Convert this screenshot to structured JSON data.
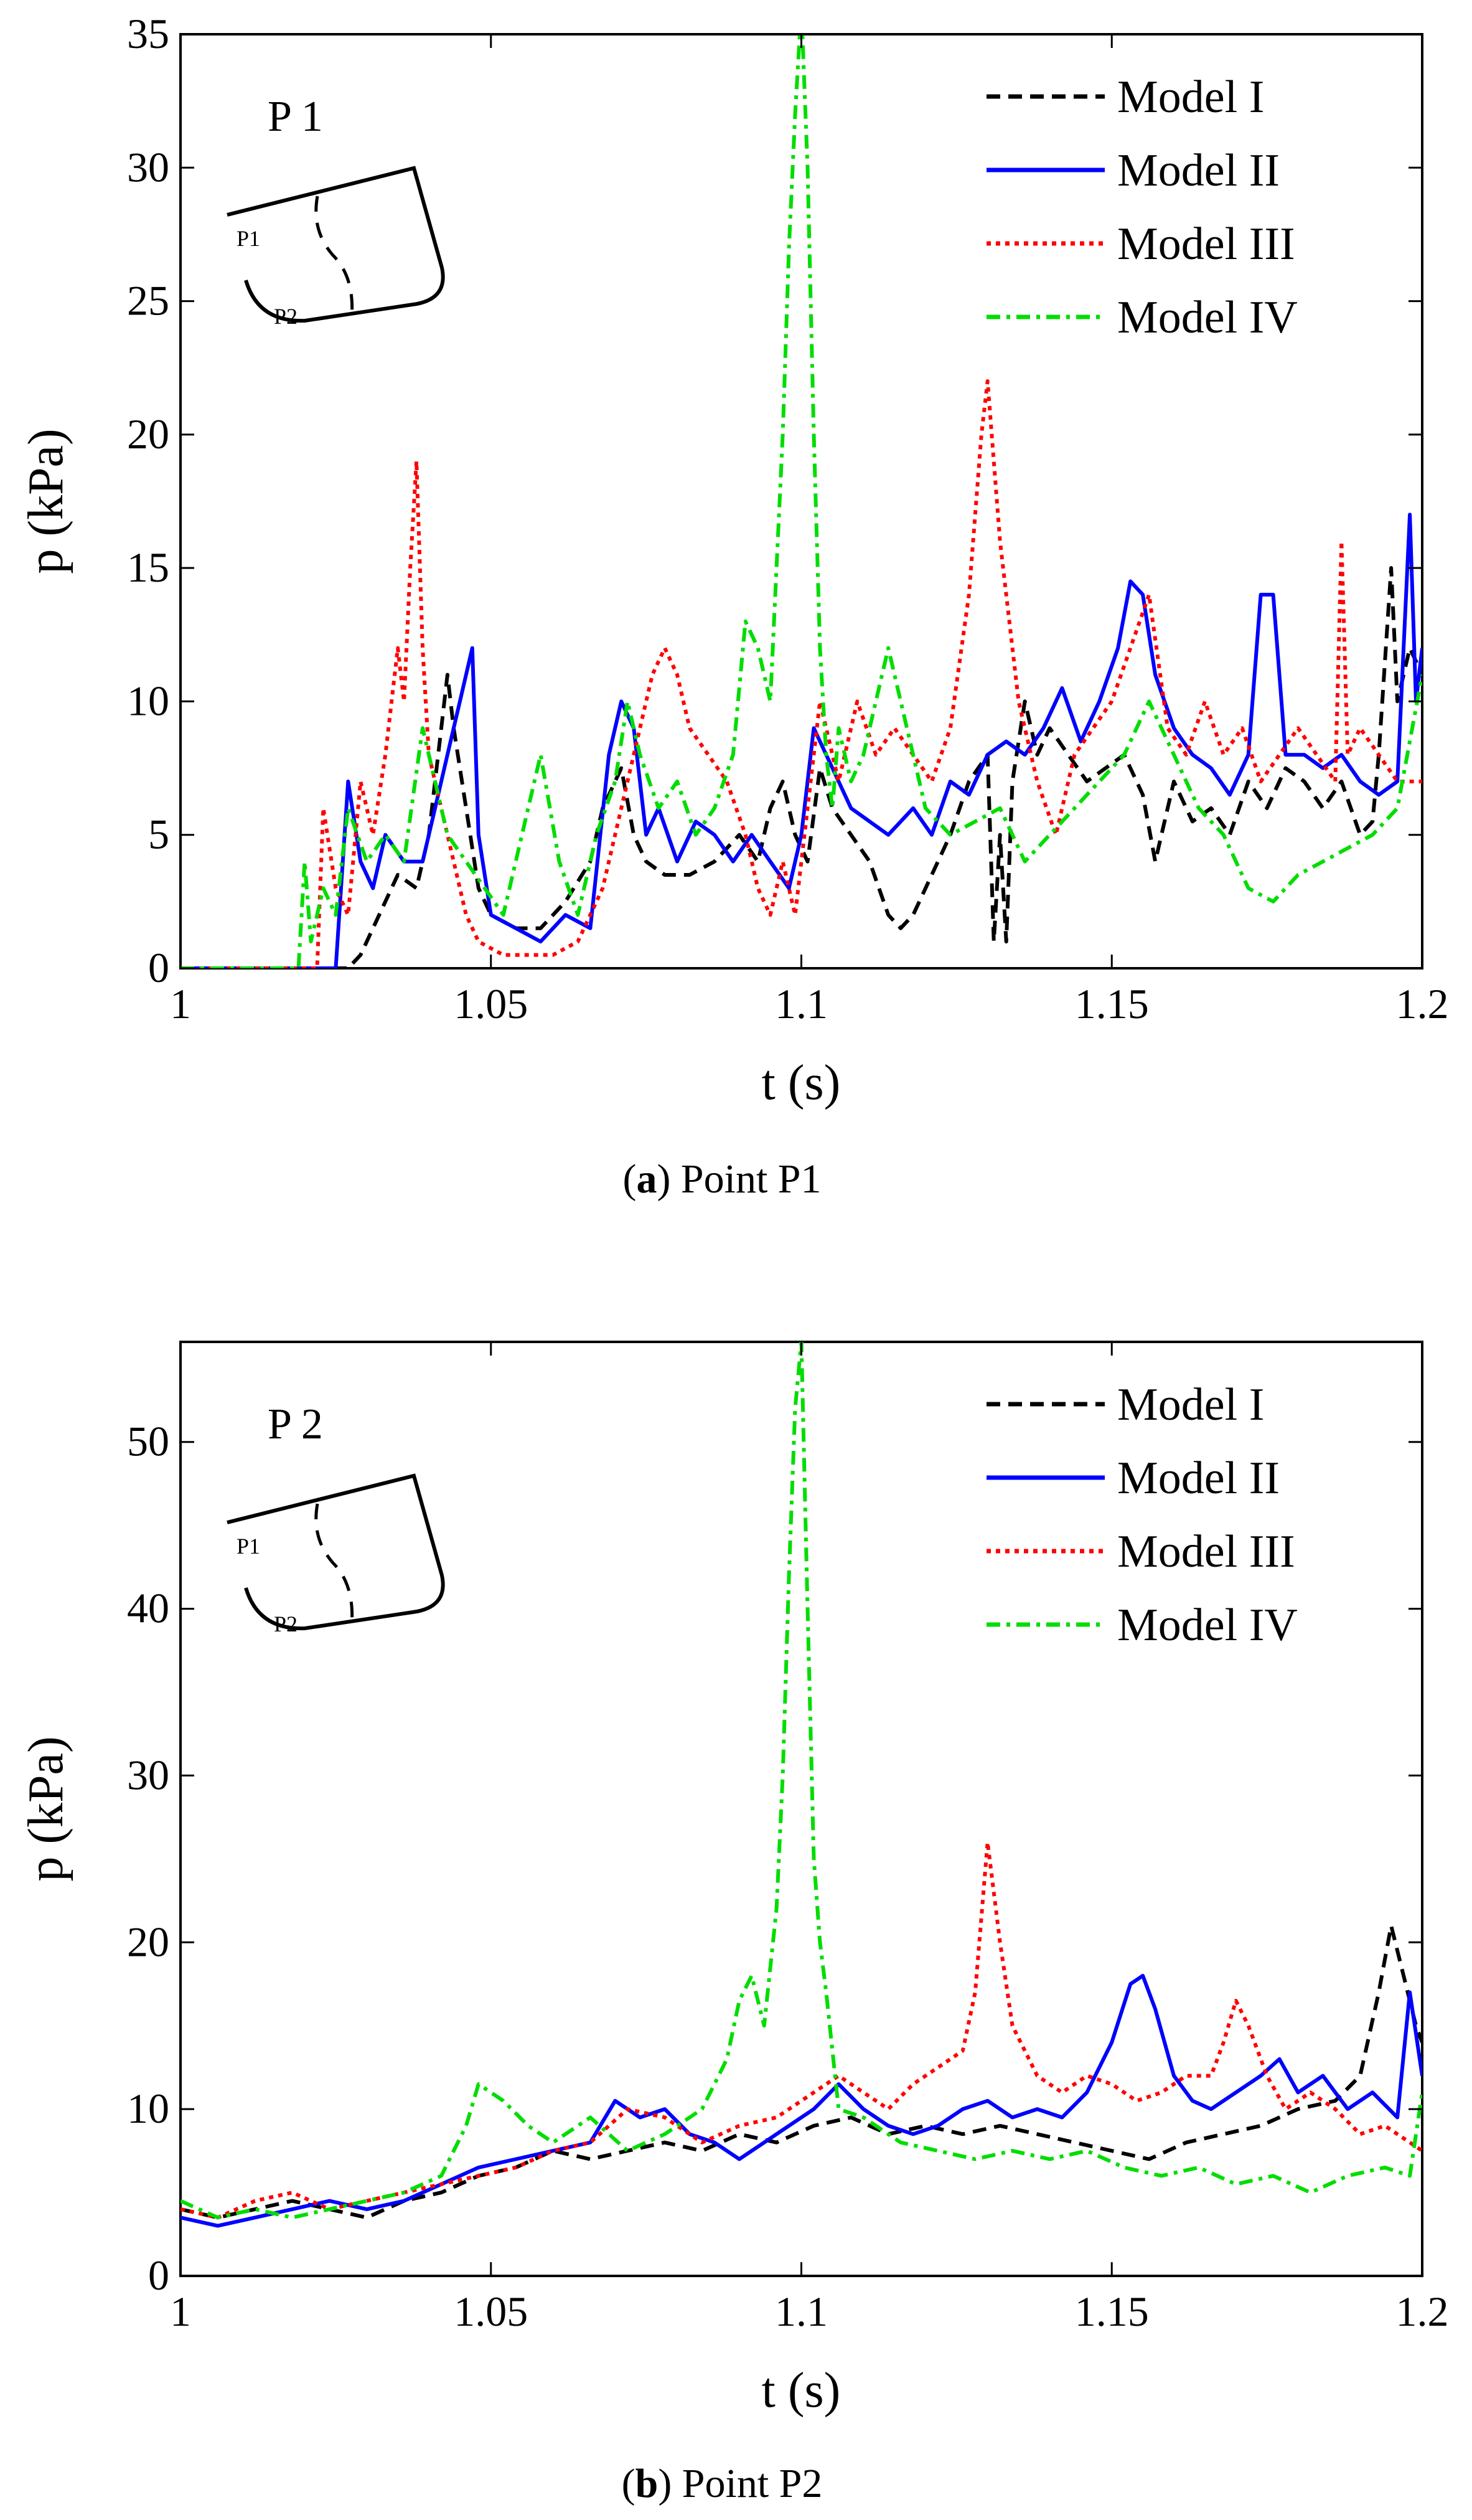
{
  "chart_data": [
    {
      "type": "line",
      "panel": "a",
      "tag": "P 1",
      "caption_letter": "a",
      "caption_text": ") Point P1",
      "caption_open": "(",
      "xlabel": "t (s)",
      "ylabel": "p (kPa)",
      "xlim": [
        1,
        1.2
      ],
      "ylim": [
        0,
        35
      ],
      "xticks": [
        1,
        1.05,
        1.1,
        1.15,
        1.2
      ],
      "xtick_labels": [
        "1",
        "1.05",
        "1.1",
        "1.15",
        "1.2"
      ],
      "yticks": [
        0,
        5,
        10,
        15,
        20,
        25,
        30,
        35
      ],
      "ytick_labels": [
        "0",
        "5",
        "10",
        "15",
        "20",
        "25",
        "30",
        "35"
      ],
      "legend_position": "top-right",
      "inset_labels": [
        "P1",
        "P2"
      ],
      "series": [
        {
          "name": "Model I",
          "color": "#000000",
          "dash": "dashed",
          "x": [
            1.0,
            1.027,
            1.029,
            1.032,
            1.035,
            1.038,
            1.04,
            1.042,
            1.043,
            1.044,
            1.046,
            1.048,
            1.05,
            1.054,
            1.058,
            1.062,
            1.066,
            1.068,
            1.07,
            1.071,
            1.073,
            1.075,
            1.078,
            1.082,
            1.086,
            1.09,
            1.093,
            1.095,
            1.097,
            1.099,
            1.101,
            1.103,
            1.105,
            1.108,
            1.111,
            1.114,
            1.116,
            1.118,
            1.121,
            1.124,
            1.127,
            1.13,
            1.131,
            1.132,
            1.133,
            1.134,
            1.136,
            1.138,
            1.14,
            1.143,
            1.146,
            1.149,
            1.152,
            1.155,
            1.157,
            1.16,
            1.163,
            1.166,
            1.169,
            1.172,
            1.175,
            1.178,
            1.181,
            1.184,
            1.187,
            1.19,
            1.192,
            1.193,
            1.195,
            1.196,
            1.198,
            1.2
          ],
          "y": [
            0,
            0,
            0.5,
            2.0,
            3.5,
            3.0,
            5.0,
            9.0,
            11.0,
            9.0,
            6.0,
            3.0,
            2.0,
            1.5,
            1.5,
            2.5,
            4.0,
            6.0,
            7.0,
            7.5,
            5.0,
            4.0,
            3.5,
            3.5,
            4.0,
            5.0,
            4.0,
            6.0,
            7.0,
            5.0,
            4.0,
            7.5,
            6.0,
            5.0,
            4.0,
            2.0,
            1.5,
            2.0,
            3.5,
            5.0,
            7.0,
            8.0,
            1.0,
            5.0,
            1.0,
            7.0,
            10.0,
            8.0,
            9.0,
            8.0,
            7.0,
            7.5,
            8.0,
            6.5,
            4.0,
            7.0,
            5.5,
            6.0,
            5.0,
            7.0,
            6.0,
            7.5,
            7.0,
            6.0,
            7.0,
            5.0,
            5.5,
            8.0,
            15.0,
            10.0,
            12.0,
            11.0
          ]
        },
        {
          "name": "Model II",
          "color": "#0000ff",
          "dash": "solid",
          "x": [
            1.0,
            1.025,
            1.027,
            1.029,
            1.031,
            1.033,
            1.036,
            1.039,
            1.041,
            1.043,
            1.045,
            1.047,
            1.048,
            1.05,
            1.054,
            1.058,
            1.062,
            1.066,
            1.069,
            1.071,
            1.073,
            1.075,
            1.077,
            1.08,
            1.083,
            1.086,
            1.089,
            1.092,
            1.095,
            1.098,
            1.1,
            1.102,
            1.104,
            1.106,
            1.108,
            1.111,
            1.114,
            1.118,
            1.121,
            1.124,
            1.127,
            1.13,
            1.133,
            1.136,
            1.139,
            1.142,
            1.145,
            1.148,
            1.151,
            1.153,
            1.155,
            1.157,
            1.16,
            1.163,
            1.166,
            1.169,
            1.172,
            1.174,
            1.176,
            1.178,
            1.181,
            1.184,
            1.187,
            1.19,
            1.193,
            1.196,
            1.198,
            1.199,
            1.2
          ],
          "y": [
            0,
            0,
            7.0,
            4.0,
            3.0,
            5.0,
            4.0,
            4.0,
            6.0,
            8.0,
            10.0,
            12.0,
            5.0,
            2.0,
            1.5,
            1.0,
            2.0,
            1.5,
            8.0,
            10.0,
            9.0,
            5.0,
            6.0,
            4.0,
            5.5,
            5.0,
            4.0,
            5.0,
            4.0,
            3.0,
            5.0,
            9.0,
            8.0,
            7.0,
            6.0,
            5.5,
            5.0,
            6.0,
            5.0,
            7.0,
            6.5,
            8.0,
            8.5,
            8.0,
            9.0,
            10.5,
            8.5,
            10.0,
            12.0,
            14.5,
            14.0,
            11.0,
            9.0,
            8.0,
            7.5,
            6.5,
            8.0,
            14.0,
            14.0,
            8.0,
            8.0,
            7.5,
            8.0,
            7.0,
            6.5,
            7.0,
            17.0,
            10.0,
            12.0
          ]
        },
        {
          "name": "Model III",
          "color": "#ff0000",
          "dash": "dotted",
          "x": [
            1.0,
            1.022,
            1.023,
            1.025,
            1.027,
            1.029,
            1.031,
            1.033,
            1.035,
            1.036,
            1.037,
            1.038,
            1.039,
            1.04,
            1.042,
            1.044,
            1.046,
            1.048,
            1.052,
            1.056,
            1.06,
            1.064,
            1.068,
            1.071,
            1.074,
            1.076,
            1.078,
            1.08,
            1.082,
            1.085,
            1.088,
            1.091,
            1.093,
            1.095,
            1.097,
            1.099,
            1.101,
            1.103,
            1.106,
            1.109,
            1.112,
            1.115,
            1.118,
            1.121,
            1.124,
            1.127,
            1.129,
            1.13,
            1.132,
            1.135,
            1.138,
            1.141,
            1.144,
            1.147,
            1.15,
            1.153,
            1.156,
            1.159,
            1.162,
            1.165,
            1.168,
            1.171,
            1.174,
            1.177,
            1.18,
            1.183,
            1.186,
            1.187,
            1.188,
            1.19,
            1.193,
            1.196,
            1.2
          ],
          "y": [
            0,
            0,
            6.0,
            3.0,
            2.0,
            7.0,
            5.0,
            8.0,
            12.0,
            10.0,
            15.0,
            19.0,
            12.0,
            8.0,
            6.0,
            4.0,
            2.0,
            1.0,
            0.5,
            0.5,
            0.5,
            1.0,
            3.0,
            6.0,
            9.0,
            11.0,
            12.0,
            11.0,
            9.0,
            8.0,
            7.0,
            5.0,
            3.0,
            2.0,
            4.0,
            2.0,
            6.0,
            10.0,
            7.0,
            10.0,
            8.0,
            9.0,
            8.0,
            7.0,
            9.0,
            14.0,
            20.0,
            22.0,
            16.0,
            10.0,
            7.0,
            5.0,
            8.0,
            9.0,
            10.0,
            12.0,
            14.0,
            9.0,
            8.0,
            10.0,
            8.0,
            9.0,
            7.0,
            8.0,
            9.0,
            8.0,
            7.0,
            16.0,
            8.0,
            9.0,
            8.0,
            7.0,
            7.0
          ]
        },
        {
          "name": "Model IV",
          "color": "#00dd00",
          "dash": "dashdot",
          "x": [
            1.0,
            1.019,
            1.02,
            1.021,
            1.023,
            1.025,
            1.027,
            1.03,
            1.033,
            1.036,
            1.039,
            1.041,
            1.043,
            1.046,
            1.049,
            1.052,
            1.055,
            1.058,
            1.061,
            1.064,
            1.067,
            1.07,
            1.072,
            1.074,
            1.077,
            1.08,
            1.083,
            1.086,
            1.089,
            1.091,
            1.093,
            1.095,
            1.096,
            1.097,
            1.098,
            1.099,
            1.1,
            1.101,
            1.102,
            1.103,
            1.104,
            1.105,
            1.106,
            1.108,
            1.11,
            1.112,
            1.114,
            1.117,
            1.12,
            1.124,
            1.128,
            1.132,
            1.136,
            1.14,
            1.144,
            1.148,
            1.152,
            1.156,
            1.16,
            1.164,
            1.168,
            1.172,
            1.176,
            1.18,
            1.184,
            1.188,
            1.192,
            1.196,
            1.2
          ],
          "y": [
            0,
            0,
            4.0,
            1.0,
            3.0,
            2.0,
            6.0,
            4.0,
            5.0,
            4.0,
            9.0,
            7.0,
            5.0,
            4.0,
            3.0,
            2.0,
            5.0,
            8.0,
            4.0,
            2.0,
            5.0,
            7.0,
            10.0,
            8.0,
            6.0,
            7.0,
            5.0,
            6.0,
            8.0,
            13.0,
            12.0,
            10.0,
            15.0,
            20.0,
            27.0,
            32.0,
            36.0,
            30.0,
            20.0,
            12.0,
            8.0,
            6.0,
            9.0,
            7.0,
            8.0,
            10.0,
            12.0,
            9.0,
            6.0,
            5.0,
            5.5,
            6.0,
            4.0,
            5.0,
            6.0,
            7.0,
            8.0,
            10.0,
            8.0,
            6.0,
            5.0,
            3.0,
            2.5,
            3.5,
            4.0,
            4.5,
            5.0,
            6.0,
            11.0
          ]
        }
      ]
    },
    {
      "type": "line",
      "panel": "b",
      "tag": "P 2",
      "caption_letter": "b",
      "caption_text": ") Point P2",
      "caption_open": "(",
      "xlabel": "t (s)",
      "ylabel": "p (kPa)",
      "xlim": [
        1,
        1.2
      ],
      "ylim": [
        0,
        56
      ],
      "xticks": [
        1,
        1.05,
        1.1,
        1.15,
        1.2
      ],
      "xtick_labels": [
        "1",
        "1.05",
        "1.1",
        "1.15",
        "1.2"
      ],
      "yticks": [
        0,
        10,
        20,
        30,
        40,
        50
      ],
      "ytick_labels": [
        "0",
        "10",
        "20",
        "30",
        "40",
        "50"
      ],
      "legend_position": "top-right",
      "inset_labels": [
        "P1",
        "P2"
      ],
      "series": [
        {
          "name": "Model I",
          "color": "#000000",
          "dash": "dashed",
          "x": [
            1.0,
            1.006,
            1.012,
            1.018,
            1.024,
            1.03,
            1.036,
            1.042,
            1.048,
            1.054,
            1.06,
            1.066,
            1.072,
            1.078,
            1.084,
            1.09,
            1.096,
            1.102,
            1.108,
            1.114,
            1.12,
            1.126,
            1.132,
            1.138,
            1.144,
            1.15,
            1.156,
            1.162,
            1.168,
            1.174,
            1.18,
            1.186,
            1.19,
            1.193,
            1.195,
            1.197,
            1.199,
            1.2
          ],
          "y": [
            4.0,
            3.5,
            4.0,
            4.5,
            4.0,
            3.5,
            4.5,
            5.0,
            6.0,
            6.5,
            7.5,
            7.0,
            7.5,
            8.0,
            7.5,
            8.5,
            8.0,
            9.0,
            9.5,
            8.5,
            9.0,
            8.5,
            9.0,
            8.5,
            8.0,
            7.5,
            7.0,
            8.0,
            8.5,
            9.0,
            10.0,
            10.5,
            12.0,
            17.0,
            21.0,
            18.0,
            15.0,
            14.0
          ]
        },
        {
          "name": "Model II",
          "color": "#0000ff",
          "dash": "solid",
          "x": [
            1.0,
            1.006,
            1.012,
            1.018,
            1.024,
            1.03,
            1.036,
            1.042,
            1.048,
            1.054,
            1.06,
            1.066,
            1.07,
            1.074,
            1.078,
            1.082,
            1.086,
            1.09,
            1.094,
            1.098,
            1.102,
            1.106,
            1.11,
            1.114,
            1.118,
            1.122,
            1.126,
            1.13,
            1.134,
            1.138,
            1.142,
            1.146,
            1.15,
            1.153,
            1.155,
            1.157,
            1.16,
            1.163,
            1.166,
            1.17,
            1.174,
            1.177,
            1.18,
            1.184,
            1.188,
            1.192,
            1.196,
            1.198,
            1.2
          ],
          "y": [
            3.5,
            3.0,
            3.5,
            4.0,
            4.5,
            4.0,
            4.5,
            5.5,
            6.5,
            7.0,
            7.5,
            8.0,
            10.5,
            9.5,
            10.0,
            8.5,
            8.0,
            7.0,
            8.0,
            9.0,
            10.0,
            11.5,
            10.0,
            9.0,
            8.5,
            9.0,
            10.0,
            10.5,
            9.5,
            10.0,
            9.5,
            11.0,
            14.0,
            17.5,
            18.0,
            16.0,
            12.0,
            10.5,
            10.0,
            11.0,
            12.0,
            13.0,
            11.0,
            12.0,
            10.0,
            11.0,
            9.5,
            17.0,
            12.0
          ]
        },
        {
          "name": "Model III",
          "color": "#ff0000",
          "dash": "dotted",
          "x": [
            1.0,
            1.006,
            1.012,
            1.018,
            1.024,
            1.03,
            1.036,
            1.042,
            1.048,
            1.054,
            1.06,
            1.066,
            1.072,
            1.078,
            1.084,
            1.09,
            1.096,
            1.102,
            1.106,
            1.11,
            1.114,
            1.118,
            1.122,
            1.126,
            1.128,
            1.13,
            1.132,
            1.134,
            1.138,
            1.142,
            1.146,
            1.15,
            1.154,
            1.158,
            1.162,
            1.166,
            1.168,
            1.17,
            1.172,
            1.175,
            1.178,
            1.182,
            1.186,
            1.19,
            1.194,
            1.198,
            1.2
          ],
          "y": [
            4.0,
            3.5,
            4.5,
            5.0,
            4.0,
            4.5,
            5.0,
            5.5,
            6.0,
            6.5,
            7.5,
            8.0,
            10.0,
            9.5,
            8.0,
            9.0,
            9.5,
            11.0,
            12.0,
            11.0,
            10.0,
            11.5,
            12.5,
            13.5,
            17.0,
            26.0,
            20.0,
            15.0,
            12.0,
            11.0,
            12.0,
            11.5,
            10.5,
            11.0,
            12.0,
            12.0,
            14.0,
            16.5,
            15.0,
            12.0,
            10.0,
            11.0,
            10.0,
            8.5,
            9.0,
            8.0,
            7.5
          ]
        },
        {
          "name": "Model IV",
          "color": "#00dd00",
          "dash": "dashdot",
          "x": [
            1.0,
            1.006,
            1.012,
            1.018,
            1.024,
            1.03,
            1.036,
            1.042,
            1.046,
            1.048,
            1.052,
            1.056,
            1.06,
            1.066,
            1.072,
            1.078,
            1.084,
            1.088,
            1.09,
            1.092,
            1.094,
            1.096,
            1.097,
            1.098,
            1.099,
            1.1,
            1.101,
            1.102,
            1.103,
            1.104,
            1.106,
            1.11,
            1.116,
            1.122,
            1.128,
            1.134,
            1.14,
            1.146,
            1.152,
            1.158,
            1.164,
            1.17,
            1.176,
            1.182,
            1.188,
            1.194,
            1.198,
            1.2
          ],
          "y": [
            4.5,
            3.5,
            4.0,
            3.5,
            4.0,
            4.5,
            5.0,
            6.0,
            9.0,
            11.5,
            10.5,
            9.0,
            8.0,
            9.5,
            7.5,
            8.5,
            10.0,
            13.0,
            16.5,
            18.0,
            15.0,
            22.0,
            30.0,
            42.0,
            52.0,
            56.0,
            40.0,
            25.0,
            20.0,
            17.0,
            10.0,
            9.5,
            8.0,
            7.5,
            7.0,
            7.5,
            7.0,
            7.5,
            6.5,
            6.0,
            6.5,
            5.5,
            6.0,
            5.0,
            6.0,
            6.5,
            6.0,
            11.0
          ]
        }
      ]
    }
  ]
}
